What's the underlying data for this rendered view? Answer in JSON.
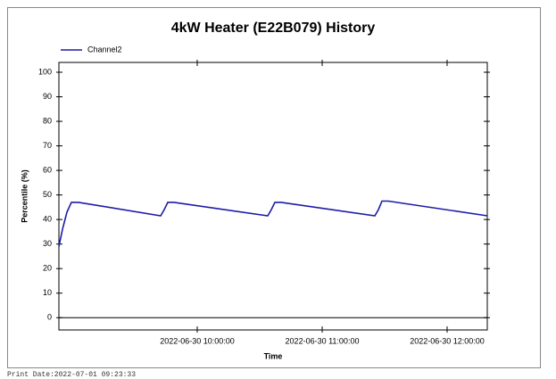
{
  "chart_data": {
    "type": "line",
    "title": "4kW Heater (E22B079) History",
    "xlabel": "Time",
    "ylabel": "Percentile (%)",
    "footer": "Print Date:2022-07-01 09:23:33",
    "legend": "top-left",
    "x": [
      "2022-06-30 08:53:34",
      "2022-06-30 08:55:17",
      "2022-06-30 08:57:26",
      "2022-06-30 08:59:34",
      "2022-06-30 09:03:00",
      "2022-06-30 09:42:26",
      "2022-06-30 09:44:09",
      "2022-06-30 09:45:51",
      "2022-06-30 09:48:51",
      "2022-06-30 10:33:51",
      "2022-06-30 10:35:34",
      "2022-06-30 10:37:17",
      "2022-06-30 10:40:17",
      "2022-06-30 11:25:17",
      "2022-06-30 11:27:00",
      "2022-06-30 11:28:43",
      "2022-06-30 11:31:43",
      "2022-06-30 12:19:17"
    ],
    "series": [
      {
        "name": "Channel2",
        "color": "#1c1ca8",
        "values": [
          29,
          36,
          43,
          47,
          47,
          41.5,
          44,
          47,
          47,
          41.5,
          44,
          47,
          47,
          41.5,
          44,
          47.5,
          47.5,
          41.5
        ]
      }
    ],
    "xlim": [
      "2022-06-30 08:53:34",
      "2022-06-30 12:19:17"
    ],
    "xticks": [
      "2022-06-30 10:00:00",
      "2022-06-30 11:00:00",
      "2022-06-30 12:00:00"
    ],
    "ylim": [
      -5,
      104
    ],
    "yticks": [
      0,
      10,
      20,
      30,
      40,
      50,
      60,
      70,
      80,
      90,
      100
    ]
  }
}
